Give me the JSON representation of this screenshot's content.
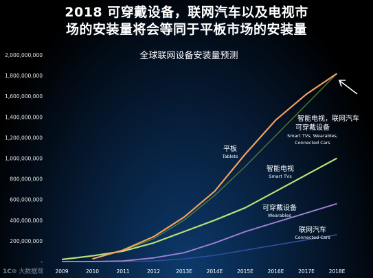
{
  "headline": {
    "line1": "2018 可穿戴设备，联网汽车以及电视市",
    "line2": "场的安装量将会等同于平板市场的安装量"
  },
  "watermark": "大数据观",
  "chart_data": {
    "type": "line",
    "title": "全球联网设备安装量预测",
    "categories": [
      "2009",
      "2010",
      "2011",
      "2012",
      "2013E",
      "2014E",
      "2015E",
      "2016E",
      "2017E",
      "2018E"
    ],
    "y_tick_labels": [
      "-",
      "200,000,000",
      "400,000,000",
      "600,000,000",
      "800,000,000",
      "1,000,000,000",
      "1,200,000,000",
      "1,400,000,000",
      "1,600,000,000",
      "1,800,000,000",
      "2,000,000,000"
    ],
    "ylim": [
      0,
      2000000000
    ],
    "grid": false,
    "series": [
      {
        "name_cn": "平板",
        "name_en": "Tablets",
        "color": "#f5a25d",
        "values": [
          null,
          25000000,
          110000000,
          240000000,
          430000000,
          680000000,
          1040000000,
          1370000000,
          1620000000,
          1820000000
        ]
      },
      {
        "name_cn": "智能电视",
        "name_en": "Smart TVs",
        "color": "#b7e07a",
        "values": [
          20000000,
          55000000,
          100000000,
          180000000,
          290000000,
          400000000,
          520000000,
          680000000,
          840000000,
          1000000000
        ]
      },
      {
        "name_cn": "可穿戴设备",
        "name_en": "Wearables",
        "color": "#9c7fd1",
        "values": [
          0,
          0,
          5000000,
          35000000,
          85000000,
          180000000,
          290000000,
          380000000,
          470000000,
          560000000
        ]
      },
      {
        "name_cn": "联网汽车",
        "name_en": "Connected Cars",
        "color": "#2c4f9e",
        "values": [
          0,
          0,
          0,
          5000000,
          25000000,
          60000000,
          110000000,
          160000000,
          210000000,
          260000000
        ]
      },
      {
        "name_cn": "智能电视，联网汽车",
        "name_cn2": "可穿戴设备",
        "name_en": "Smart TVs, Wearables,",
        "name_en2": "Connected Cars",
        "color": "#5f8a3a",
        "values": [
          20000000,
          55000000,
          105000000,
          220000000,
          400000000,
          640000000,
          920000000,
          1220000000,
          1520000000,
          1820000000
        ]
      }
    ]
  }
}
